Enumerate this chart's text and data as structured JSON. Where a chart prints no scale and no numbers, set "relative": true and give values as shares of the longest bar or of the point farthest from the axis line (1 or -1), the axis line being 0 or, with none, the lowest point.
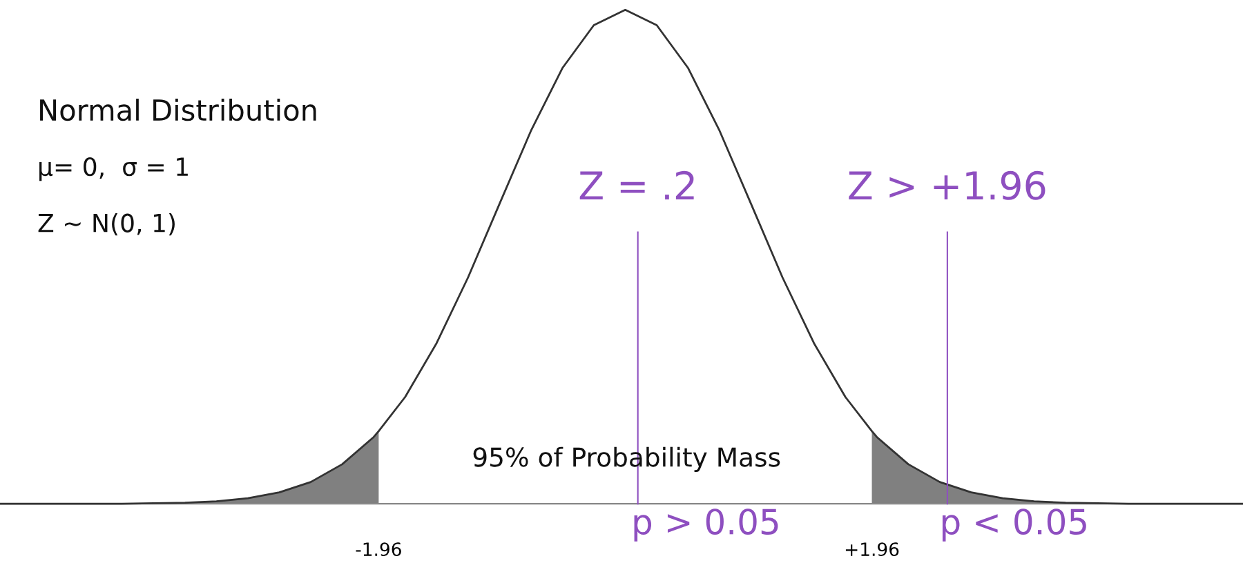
{
  "chart_data": {
    "type": "line",
    "relative": true,
    "xlim": [
      -4.97,
      4.91
    ],
    "xticks": [
      {
        "value": -1.96,
        "label": "-1.96"
      },
      {
        "value": 1.96,
        "label": "+1.96"
      }
    ],
    "grid": false,
    "marker": "none",
    "line_style": "solid",
    "series": [
      {
        "color": "#333333",
        "x": [
          -4.97,
          -4.5,
          -4,
          -3.75,
          -3.5,
          -3.25,
          -3,
          -2.75,
          -2.5,
          -2.25,
          -2,
          -1.96,
          -1.75,
          -1.5,
          -1.25,
          -1,
          -0.75,
          -0.5,
          -0.25,
          0,
          0.25,
          0.5,
          0.75,
          1,
          1.25,
          1.5,
          1.75,
          1.96,
          2,
          2.25,
          2.5,
          2.75,
          3,
          3.25,
          3.5,
          3.75,
          4,
          4.5,
          4.91
        ],
        "values": [
          0,
          0,
          0,
          0.001,
          0.002,
          0.005,
          0.011,
          0.023,
          0.044,
          0.08,
          0.135,
          0.147,
          0.216,
          0.325,
          0.458,
          0.607,
          0.755,
          0.882,
          0.969,
          1,
          0.969,
          0.882,
          0.755,
          0.607,
          0.458,
          0.325,
          0.216,
          0.147,
          0.135,
          0.08,
          0.044,
          0.023,
          0.011,
          0.005,
          0.002,
          0.001,
          0,
          0,
          0
        ]
      },
      {
        "type": "area",
        "color": "#808080",
        "x": [
          -4.97,
          -4.5,
          -4,
          -3.75,
          -3.5,
          -3.25,
          -3,
          -2.75,
          -2.5,
          -2.25,
          -2,
          -1.96
        ],
        "values": [
          0,
          0,
          0,
          0.001,
          0.002,
          0.005,
          0.011,
          0.023,
          0.044,
          0.08,
          0.135,
          0.147
        ]
      },
      {
        "type": "area",
        "color": "#808080",
        "x": [
          1.96,
          2,
          2.25,
          2.5,
          2.75,
          3,
          3.25,
          3.5,
          3.75,
          4,
          4.5,
          4.91
        ],
        "values": [
          0.147,
          0.135,
          0.08,
          0.044,
          0.023,
          0.011,
          0.005,
          0.002,
          0.001,
          0,
          0,
          0
        ]
      }
    ],
    "ref_lines": [
      {
        "axis": "x",
        "value": 0.1,
        "label": "Z = .2",
        "color": "#8e4fc0"
      },
      {
        "axis": "x",
        "value": 2.56,
        "label": "Z > +1.96",
        "color": "#8e4fc0"
      }
    ],
    "annotations": [
      "Normal Distribution",
      "μ= 0,  σ = 1",
      "Z ~ N(0, 1)",
      "95% of Probability Mass",
      "p > 0.05",
      "p < 0.05"
    ]
  }
}
